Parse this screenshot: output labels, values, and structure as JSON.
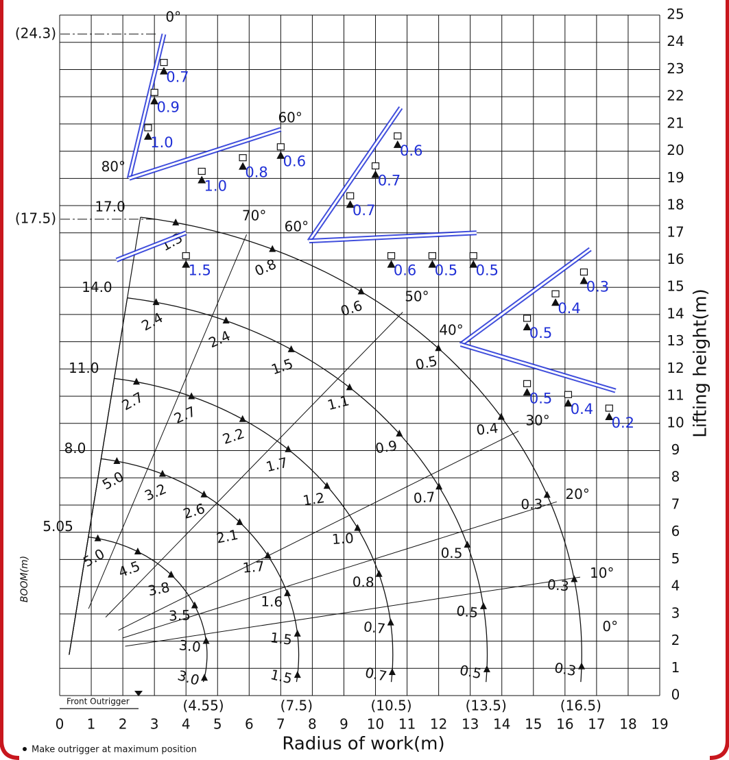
{
  "chart_data": {
    "type": "crane-range",
    "x_label": "Radius of work(m)",
    "y_label": "Lifting height(m)",
    "note": "Make outrigger at maximum position",
    "outrigger_label": "Front Outrigger",
    "boom_label": "BOOM(m)",
    "xlim": [
      0,
      19
    ],
    "ylim": [
      0,
      25
    ],
    "xticks": [
      0,
      1,
      2,
      3,
      4,
      5,
      6,
      7,
      8,
      9,
      10,
      11,
      12,
      13,
      14,
      15,
      16,
      17,
      18,
      19
    ],
    "yticks": [
      0,
      1,
      2,
      3,
      4,
      5,
      6,
      7,
      8,
      9,
      10,
      11,
      12,
      13,
      14,
      15,
      16,
      17,
      18,
      19,
      20,
      21,
      22,
      23,
      24,
      25
    ],
    "grid": true,
    "booms": [
      {
        "length": 5.05,
        "reach": {
          "value": 4.55,
          "label": "(4.55)"
        },
        "loads": [
          5.0,
          4.5,
          3.8,
          3.5,
          3.0,
          3.0
        ],
        "load_labels": [
          "5.0",
          "4.5",
          "3.8",
          "3.5",
          "3.0",
          "3.0"
        ]
      },
      {
        "length": {
          "value": 8.0,
          "label": "8.0"
        },
        "reach": {
          "value": 7.5,
          "label": "(7.5)"
        },
        "loads": [
          5.0,
          3.2,
          2.6,
          2.1,
          1.7,
          1.6,
          1.5,
          1.5
        ],
        "load_labels": [
          "5.0",
          "3.2",
          "2.6",
          "2.1",
          "1.7",
          "1.6",
          "1.5",
          "1.5"
        ]
      },
      {
        "length": {
          "value": 11.0,
          "label": "11.0"
        },
        "reach": {
          "value": 10.5,
          "label": "(10.5)"
        },
        "loads": [
          2.7,
          2.7,
          2.2,
          1.7,
          1.2,
          1.0,
          0.8,
          0.7,
          0.7
        ],
        "load_labels": [
          "2.7",
          "2.7",
          "2.2",
          "1.7",
          "1.2",
          "1.0",
          "0.8",
          "0.7",
          "0.7"
        ]
      },
      {
        "length": {
          "value": 14.0,
          "label": "14.0"
        },
        "reach": {
          "value": 13.5,
          "label": "(13.5)"
        },
        "loads": [
          2.4,
          2.4,
          1.5,
          1.1,
          0.9,
          0.7,
          0.5,
          0.5,
          0.5
        ],
        "load_labels": [
          "2.4",
          "2.4",
          "1.5",
          "1.1",
          "0.9",
          "0.7",
          "0.5",
          "0.5",
          "0.5"
        ]
      },
      {
        "length": {
          "value": 17.0,
          "label": "17.0"
        },
        "reach": {
          "value": 16.5,
          "label": "(16.5)"
        },
        "loads": [
          1.3,
          0.8,
          0.6,
          0.5,
          0.4,
          0.3,
          0.3,
          0.3
        ],
        "load_labels": [
          "1.3",
          "0.8",
          "0.6",
          "0.5",
          "0.4",
          "0.3",
          "0.3",
          "0.3"
        ]
      }
    ],
    "heights": [
      {
        "value": 24.3,
        "label": "(24.3)"
      },
      {
        "value": 17.5,
        "label": "(17.5)"
      }
    ],
    "ray_angles": [
      {
        "value": 0,
        "label": "0°"
      },
      {
        "value": 10,
        "label": "10°"
      },
      {
        "value": 20,
        "label": "20°"
      },
      {
        "value": 30,
        "label": "30°"
      },
      {
        "value": 50,
        "label": "50°"
      },
      {
        "value": 70,
        "label": "70°"
      }
    ],
    "jib_angle_labels": [
      "0°",
      "60°",
      "80°",
      "60°",
      "40°"
    ],
    "jib_loads": [
      {
        "values": [
          0.7,
          0.9,
          1.0
        ],
        "value_labels": [
          "0.7",
          "0.9",
          "1.0"
        ]
      },
      {
        "values": [
          1.0,
          0.8,
          0.6
        ],
        "value_labels": [
          "1.0",
          "0.8",
          "0.6"
        ]
      },
      {
        "values": [
          1.5
        ],
        "value_labels": [
          "1.5"
        ]
      },
      {
        "values": [
          0.7,
          0.7,
          0.6
        ],
        "value_labels": [
          "0.7",
          "0.7",
          "0.6"
        ]
      },
      {
        "values": [
          0.6,
          0.5,
          0.5
        ],
        "value_labels": [
          "0.6",
          "0.5",
          "0.5"
        ]
      },
      {
        "values": [
          0.5,
          0.4,
          0.3
        ],
        "value_labels": [
          "0.5",
          "0.4",
          "0.3"
        ]
      },
      {
        "values": [
          0.5,
          0.4,
          0.2
        ],
        "value_labels": [
          "0.5",
          "0.4",
          "0.2"
        ]
      }
    ]
  }
}
